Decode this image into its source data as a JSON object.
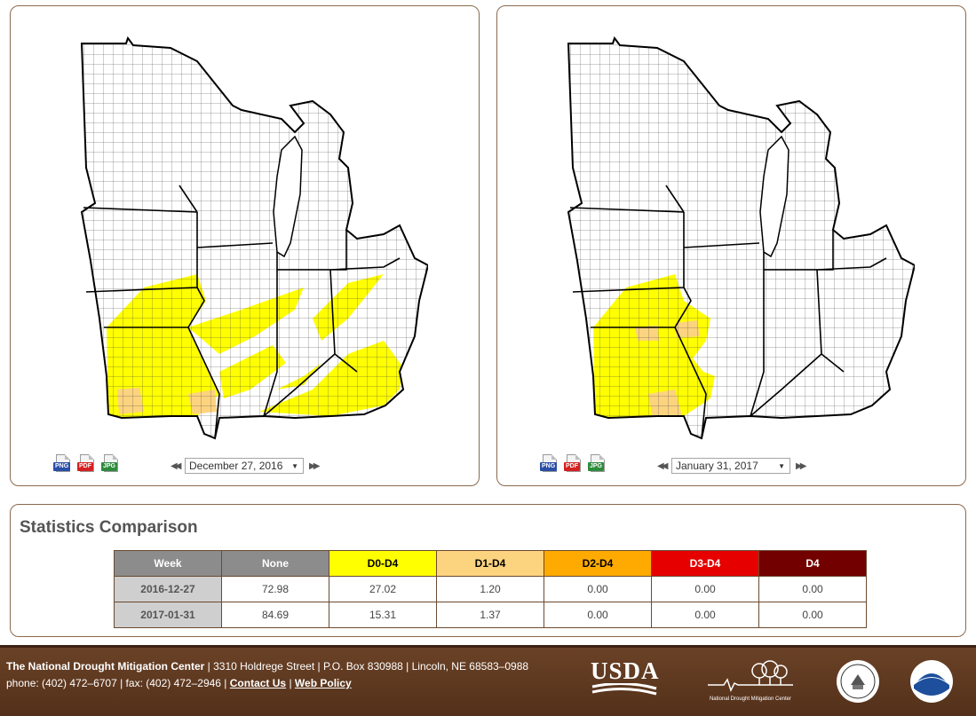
{
  "maps": [
    {
      "date_label": "December 27, 2016",
      "downloads": [
        "PNG",
        "PDF",
        "JPG"
      ]
    },
    {
      "date_label": "January 31, 2017",
      "downloads": [
        "PNG",
        "PDF",
        "JPG"
      ]
    }
  ],
  "legend_colors": {
    "None": "#ffffff",
    "D0": "#ffff00",
    "D1": "#fcd37f",
    "D2": "#ffaa00",
    "D3": "#e60000",
    "D4": "#730000"
  },
  "stats": {
    "title": "Statistics Comparison",
    "headers": [
      "Week",
      "None",
      "D0-D4",
      "D1-D4",
      "D2-D4",
      "D3-D4",
      "D4"
    ],
    "header_colors": [
      "#8c8c8c",
      "#8c8c8c",
      "#ffff00",
      "#fcd37f",
      "#ffaa00",
      "#e60000",
      "#730000"
    ],
    "header_text_colors": [
      "#ffffff",
      "#ffffff",
      "#000000",
      "#000000",
      "#000000",
      "#ffffff",
      "#ffffff"
    ],
    "rows": [
      [
        "2016-12-27",
        "72.98",
        "27.02",
        "1.20",
        "0.00",
        "0.00",
        "0.00"
      ],
      [
        "2017-01-31",
        "84.69",
        "15.31",
        "1.37",
        "0.00",
        "0.00",
        "0.00"
      ]
    ]
  },
  "footer": {
    "org_name": "The National Drought Mitigation Center",
    "address": " | 3310 Holdrege Street | P.O. Box 830988 | Lincoln, NE 68583–0988",
    "contact": "phone: (402) 472–6707 | fax: (402) 472–2946 | ",
    "contact_link": "Contact Us",
    "separator": " | ",
    "policy_link": "Web Policy",
    "usda_logo_text": "USDA",
    "ndmc_logo_text": "National Drought Mitigation Center",
    "noaa_logo_text": "NOAA"
  }
}
